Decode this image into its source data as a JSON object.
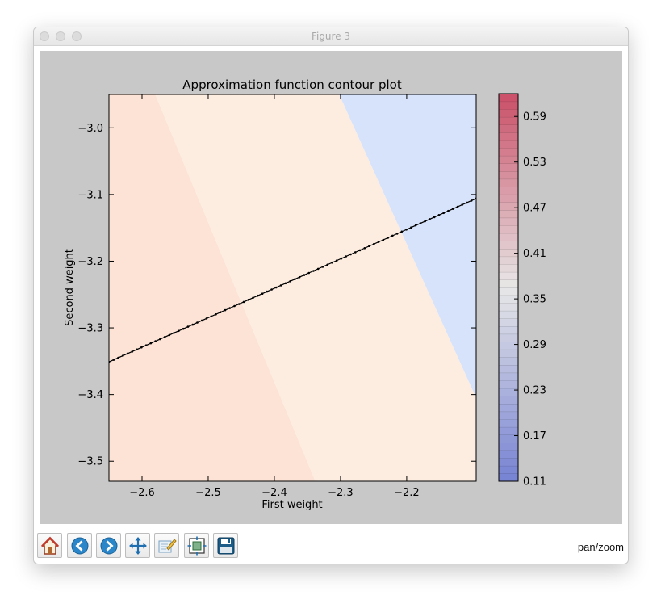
{
  "window": {
    "title": "Figure 3",
    "status": "pan/zoom"
  },
  "toolbar": {
    "buttons": [
      {
        "name": "home",
        "icon": "home-icon"
      },
      {
        "name": "back",
        "icon": "back-arrow-icon"
      },
      {
        "name": "forward",
        "icon": "forward-arrow-icon"
      },
      {
        "name": "pan",
        "icon": "move-icon"
      },
      {
        "name": "zoom",
        "icon": "zoom-to-rect-icon"
      },
      {
        "name": "configure-subplots",
        "icon": "subplots-icon"
      },
      {
        "name": "save",
        "icon": "save-icon"
      }
    ]
  },
  "chart_data": {
    "type": "contour",
    "title": "Approximation function contour plot",
    "xlabel": "First weight",
    "ylabel": "Second weight",
    "xlim": [
      -2.65,
      -2.095
    ],
    "ylim": [
      -3.53,
      -2.95
    ],
    "xticks": [
      -2.6,
      -2.5,
      -2.4,
      -2.3,
      -2.2
    ],
    "xtick_labels": [
      "−2.6",
      "−2.5",
      "−2.4",
      "−2.3",
      "−2.2"
    ],
    "yticks": [
      -3.0,
      -3.1,
      -3.2,
      -3.3,
      -3.4,
      -3.5
    ],
    "ytick_labels": [
      "−3.0",
      "−3.1",
      "−3.2",
      "−3.3",
      "−3.4",
      "−3.5"
    ],
    "regions": [
      {
        "level": 0.38,
        "color": "#fde3d6",
        "polygon": [
          [
            -2.65,
            -2.95
          ],
          [
            -2.58,
            -2.95
          ],
          [
            -2.338,
            -3.53
          ],
          [
            -2.65,
            -3.53
          ]
        ]
      },
      {
        "level": 0.36,
        "color": "#fdede0",
        "polygon": [
          [
            -2.58,
            -2.95
          ],
          [
            -2.302,
            -2.95
          ],
          [
            -2.095,
            -3.405
          ],
          [
            -2.095,
            -3.53
          ],
          [
            -2.338,
            -3.53
          ]
        ]
      },
      {
        "level": 0.34,
        "color": "#d6e3fb",
        "polygon": [
          [
            -2.302,
            -2.95
          ],
          [
            -2.095,
            -2.95
          ],
          [
            -2.095,
            -3.405
          ]
        ]
      }
    ],
    "line": {
      "color": "#000000",
      "x": [
        -2.65,
        -2.095
      ],
      "y": [
        -3.351,
        -3.106
      ],
      "points": 80
    },
    "colorbar": {
      "min": 0.11,
      "max": 0.62,
      "ticks": [
        0.11,
        0.17,
        0.23,
        0.29,
        0.35,
        0.41,
        0.47,
        0.53,
        0.59
      ],
      "tick_labels": [
        "0.11",
        "0.17",
        "0.23",
        "0.29",
        "0.35",
        "0.41",
        "0.47",
        "0.53",
        "0.59"
      ],
      "levels": 50,
      "colormap": "coolwarm",
      "alpha": 0.7
    }
  }
}
